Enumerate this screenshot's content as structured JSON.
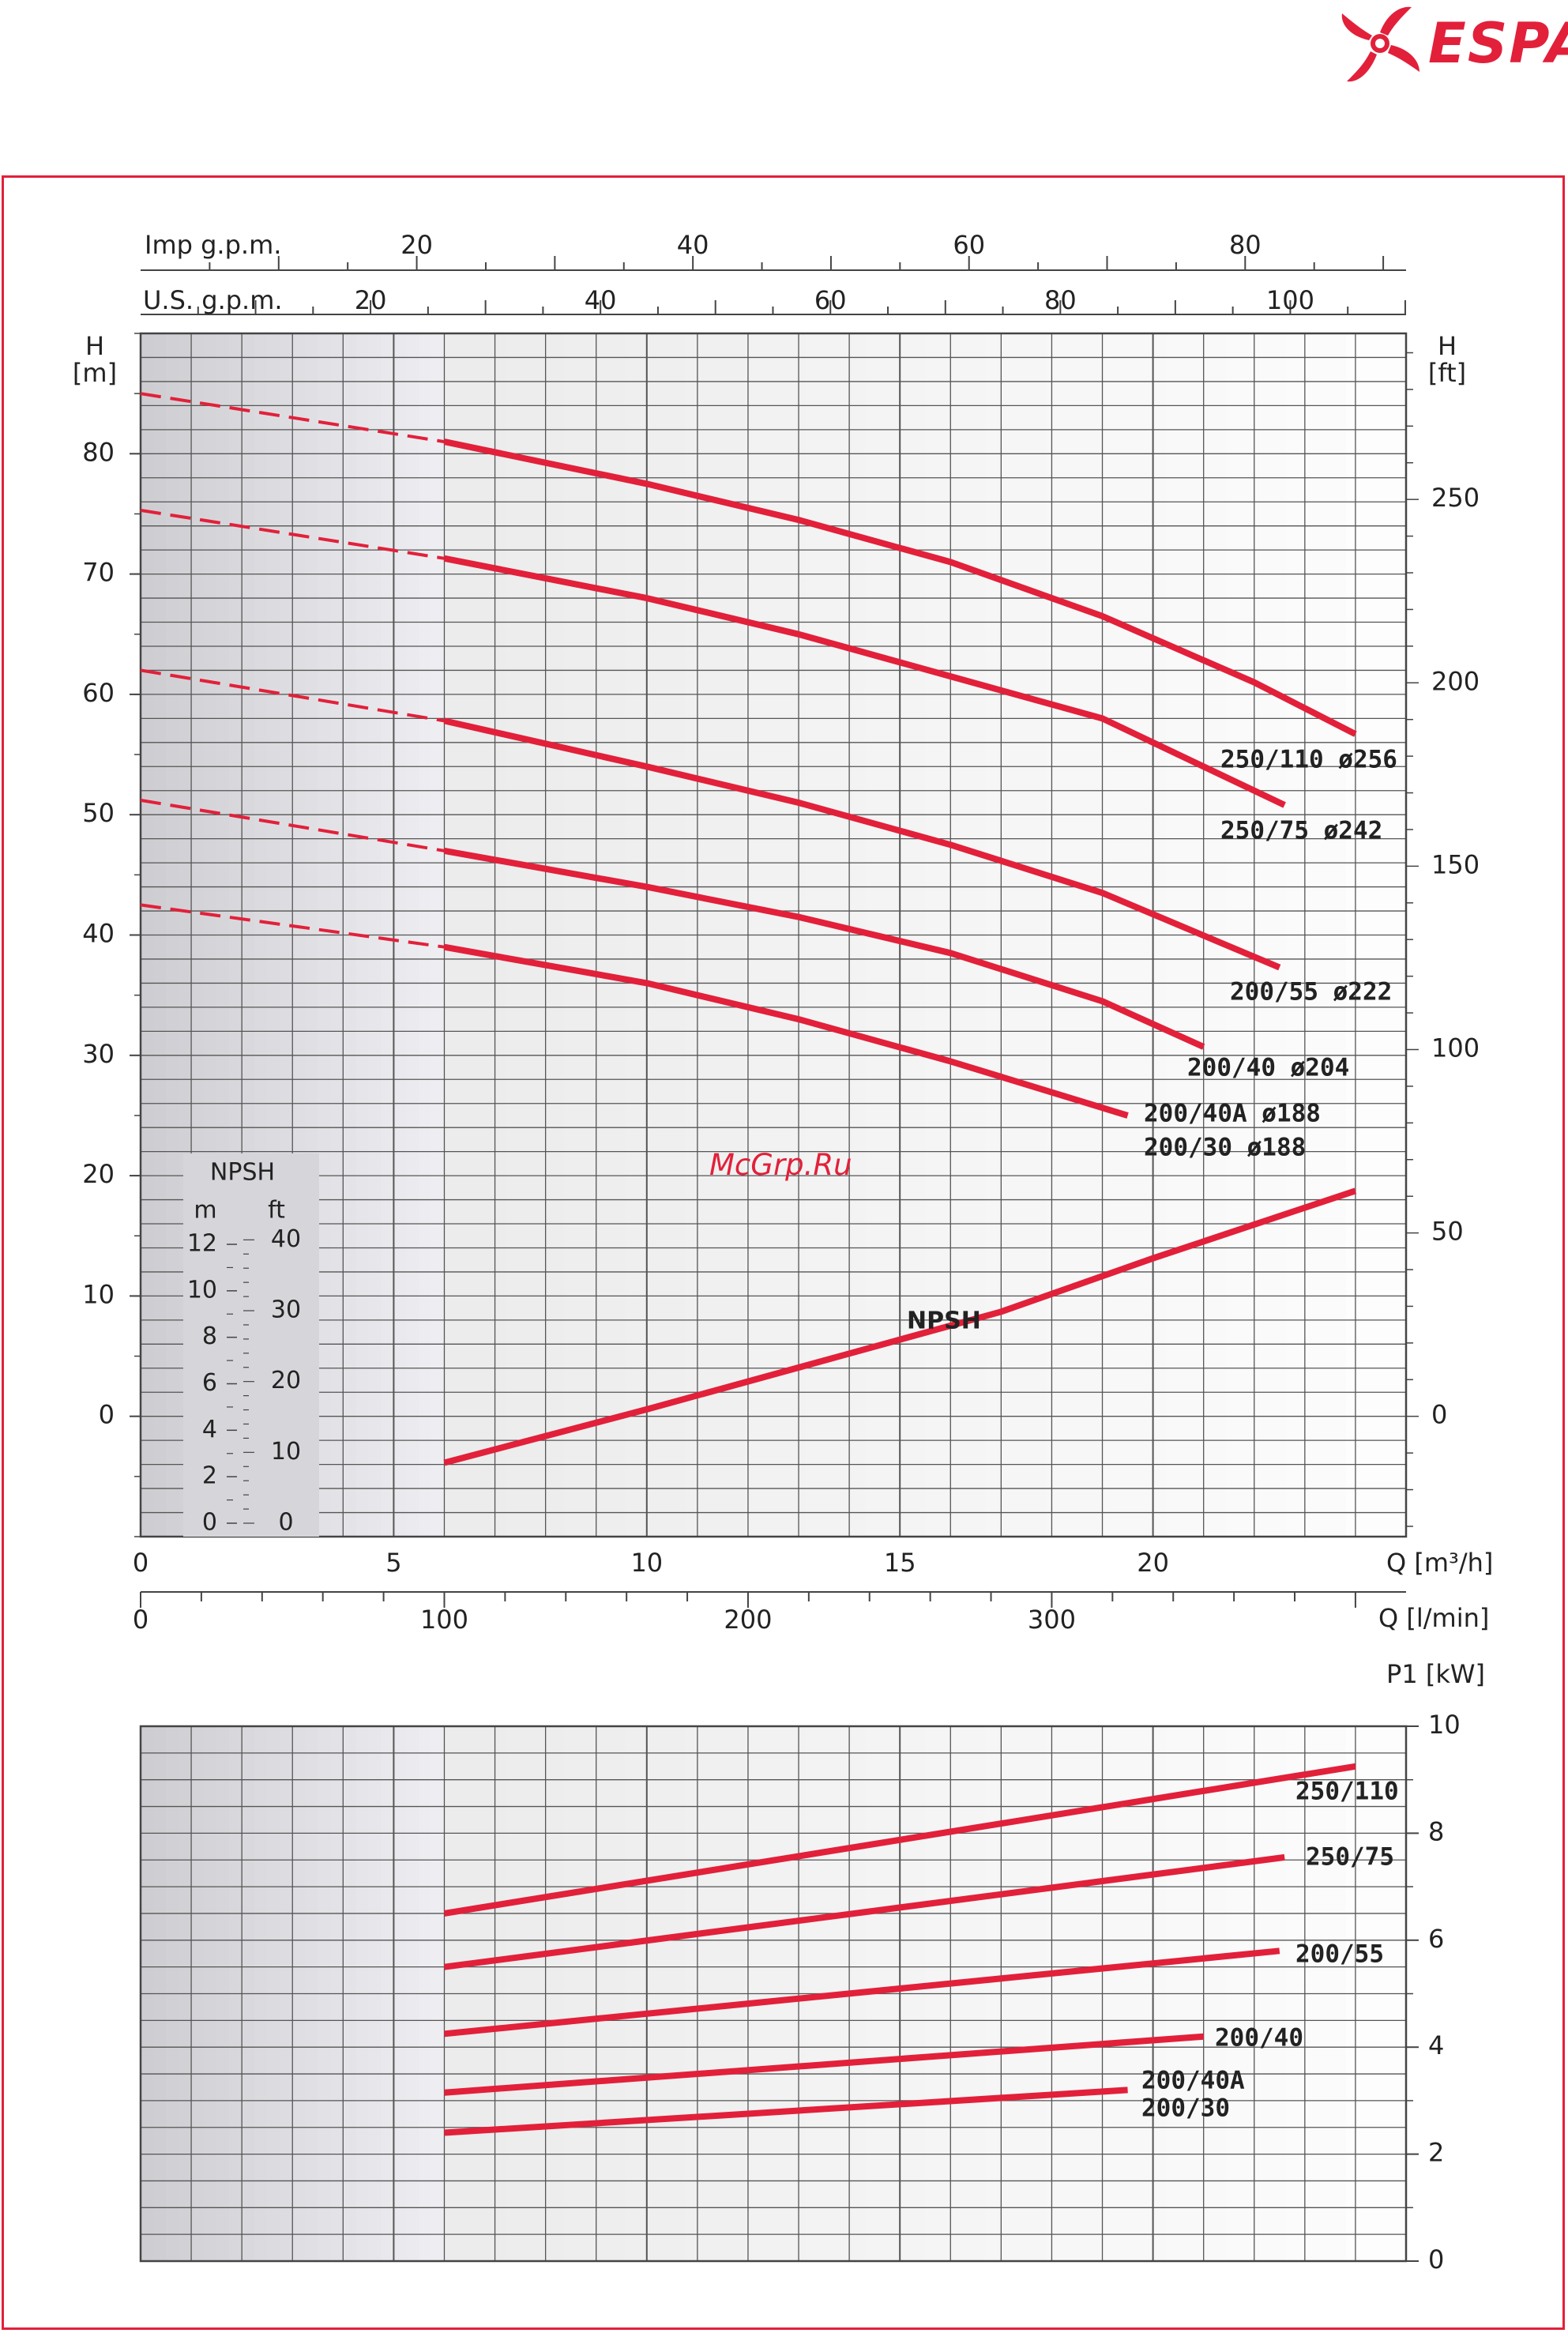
{
  "brand": {
    "name": "ESPA",
    "color": "#e2203a"
  },
  "watermark": "McGrp.Ru",
  "colors": {
    "curve": "#e2203a",
    "grid": "#555555",
    "shade": "#d4d4d8"
  },
  "chart_data": [
    {
      "type": "line",
      "title": "",
      "xlabel": "Q [m³/h]",
      "xlabel2": "Q [l/min]",
      "ylabel_left_line1": "H",
      "ylabel_left_line2": "[m]",
      "ylabel_right_line1": "H",
      "ylabel_right_line2": "[ft]",
      "top_axis_imp_label": "Imp g.p.m.",
      "top_axis_us_label": "U.S. g.p.m.",
      "xlim": [
        0,
        25
      ],
      "ylim": [
        -10,
        90
      ],
      "x_ticks": [
        "0",
        "5",
        "10",
        "15",
        "20"
      ],
      "x_ticks_lmin": [
        "0",
        "100",
        "200",
        "300"
      ],
      "imp_ticks": [
        "20",
        "40",
        "60",
        "80"
      ],
      "us_ticks": [
        "20",
        "40",
        "60",
        "80",
        "100"
      ],
      "y_ticks_left": [
        "0",
        "10",
        "20",
        "30",
        "40",
        "50",
        "60",
        "70",
        "80"
      ],
      "y_ticks_right": [
        "0",
        "50",
        "100",
        "150",
        "200",
        "250"
      ],
      "grid": true,
      "series": [
        {
          "name": "250/110 ø256",
          "x": [
            6,
            10,
            13,
            16,
            19,
            22,
            24
          ],
          "y": [
            81,
            77.5,
            74.5,
            71,
            66.5,
            61,
            56.7
          ]
        },
        {
          "name": "250/75 ø242",
          "x": [
            6,
            10,
            13,
            16,
            19,
            22.6
          ],
          "y": [
            71.3,
            68,
            65,
            61.5,
            58,
            50.8
          ]
        },
        {
          "name": "200/55 ø222",
          "x": [
            6,
            10,
            13,
            16,
            19,
            22.5
          ],
          "y": [
            57.8,
            54,
            51,
            47.5,
            43.5,
            37.3
          ]
        },
        {
          "name": "200/40 ø204",
          "x": [
            6,
            10,
            13,
            16,
            19,
            21
          ],
          "y": [
            47,
            44,
            41.5,
            38.5,
            34.5,
            30.7
          ]
        },
        {
          "name": "200/40A ø188",
          "x": [
            6,
            10,
            13,
            16,
            19.5
          ],
          "y": [
            39,
            36,
            33,
            29.5,
            25
          ]
        },
        {
          "name": "200/30 ø188",
          "x": [],
          "y": []
        }
      ],
      "dashed_extensions": [
        {
          "x": [
            0,
            6
          ],
          "y": [
            85,
            81
          ]
        },
        {
          "x": [
            0,
            6
          ],
          "y": [
            75.3,
            71.3
          ]
        },
        {
          "x": [
            0,
            6
          ],
          "y": [
            62,
            57.8
          ]
        },
        {
          "x": [
            0,
            6
          ],
          "y": [
            51.2,
            47
          ]
        },
        {
          "x": [
            0,
            6
          ],
          "y": [
            42.5,
            39
          ]
        }
      ],
      "npsh": {
        "label": "NPSH",
        "title": "NPSH",
        "unit_m": "m",
        "unit_ft": "ft",
        "m_ticks": [
          "12",
          "10",
          "8",
          "6",
          "4",
          "2",
          "0"
        ],
        "ft_ticks": [
          "40",
          "30",
          "20",
          "10",
          "0"
        ],
        "x": [
          6,
          10,
          14,
          17,
          20,
          24
        ],
        "y": [
          2.6,
          4.9,
          7.3,
          9.1,
          11.4,
          14.3
        ]
      }
    },
    {
      "type": "line",
      "title": "",
      "ylabel": "P1 [kW]",
      "xlim": [
        0,
        25
      ],
      "ylim": [
        0,
        10
      ],
      "y_ticks": [
        "0",
        "2",
        "4",
        "6",
        "8",
        "10"
      ],
      "grid": true,
      "series": [
        {
          "name": "250/110",
          "x": [
            6,
            24
          ],
          "y": [
            6.5,
            9.25
          ]
        },
        {
          "name": "250/75",
          "x": [
            6,
            22.6
          ],
          "y": [
            5.5,
            7.55
          ]
        },
        {
          "name": "200/55",
          "x": [
            6,
            22.5
          ],
          "y": [
            4.25,
            5.8
          ]
        },
        {
          "name": "200/40",
          "x": [
            6,
            21
          ],
          "y": [
            3.15,
            4.2
          ]
        },
        {
          "name": "200/40A",
          "x": [
            6,
            19.5
          ],
          "y": [
            2.4,
            3.2
          ]
        },
        {
          "name": "200/30",
          "x": [],
          "y": []
        }
      ]
    }
  ]
}
